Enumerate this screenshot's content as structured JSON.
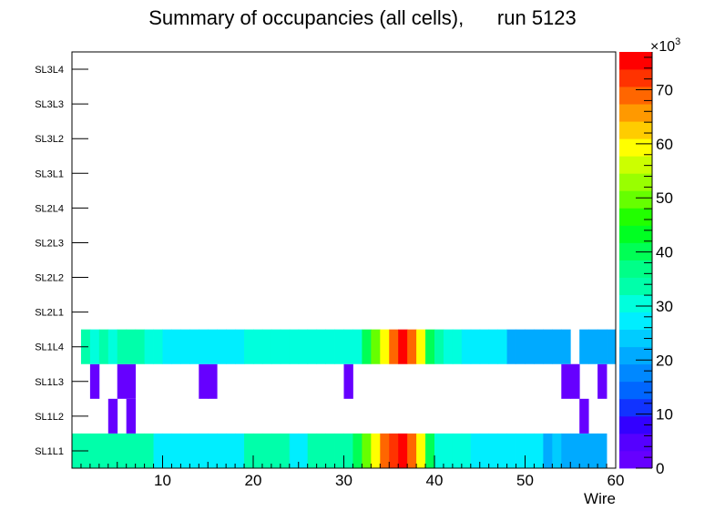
{
  "chart_data": {
    "type": "heatmap",
    "title": "Summary of occupancies (all cells),      run 5123",
    "xlabel": "Wire",
    "ylabel": "",
    "xlim": [
      0,
      60
    ],
    "x_ticks": [
      10,
      20,
      30,
      40,
      50,
      60
    ],
    "y_categories": [
      "SL1L1",
      "SL1L2",
      "SL1L3",
      "SL1L4",
      "SL2L1",
      "SL2L2",
      "SL2L3",
      "SL2L4",
      "SL3L1",
      "SL3L2",
      "SL3L3",
      "SL3L4"
    ],
    "colorbar": {
      "min": 0,
      "max": 77,
      "ticks": [
        0,
        10,
        20,
        30,
        40,
        50,
        60,
        70
      ],
      "exponent_label": "×10",
      "exponent_power": "3",
      "palette": [
        "#6600ff",
        "#5500ff",
        "#3300ff",
        "#1133ff",
        "#0066ff",
        "#0088ff",
        "#00aaff",
        "#00ccff",
        "#00eeff",
        "#00ffdd",
        "#00ffaa",
        "#00ff88",
        "#00ff55",
        "#00ff22",
        "#22ff00",
        "#66ff00",
        "#99ff00",
        "#ccff00",
        "#ffff00",
        "#ffcc00",
        "#ff9900",
        "#ff6600",
        "#ff3300",
        "#ff0000"
      ]
    },
    "rows": {
      "SL1L1": [
        33,
        33,
        33,
        33,
        33,
        33,
        33,
        33,
        33,
        28,
        28,
        26,
        28,
        28,
        28,
        26,
        28,
        28,
        28,
        33,
        33,
        33,
        33,
        33,
        28,
        28,
        33,
        33,
        33,
        33,
        33,
        40,
        50,
        60,
        70,
        72,
        76,
        70,
        60,
        40,
        30,
        30,
        30,
        30,
        28,
        28,
        28,
        28,
        28,
        28,
        28,
        28,
        20,
        25,
        20,
        20,
        20,
        20,
        20,
        0
      ],
      "SL1L2": [
        0,
        0,
        0,
        0,
        3,
        0,
        3,
        0,
        0,
        0,
        0,
        0,
        0,
        0,
        0,
        0,
        0,
        0,
        0,
        0,
        0,
        0,
        0,
        0,
        0,
        0,
        0,
        0,
        0,
        0,
        0,
        0,
        0,
        0,
        0,
        0,
        0,
        0,
        0,
        0,
        0,
        0,
        0,
        0,
        0,
        0,
        0,
        0,
        0,
        0,
        0,
        0,
        0,
        0,
        0,
        0,
        3,
        0,
        0,
        0
      ],
      "SL1L3": [
        0,
        0,
        3,
        0,
        0,
        3,
        3,
        0,
        0,
        0,
        0,
        0,
        0,
        0,
        3,
        3,
        0,
        0,
        0,
        0,
        0,
        0,
        0,
        0,
        0,
        0,
        0,
        0,
        0,
        0,
        3,
        0,
        0,
        0,
        0,
        0,
        0,
        0,
        0,
        0,
        0,
        0,
        0,
        0,
        0,
        0,
        0,
        0,
        0,
        0,
        0,
        0,
        0,
        0,
        3,
        3,
        0,
        0,
        3,
        0
      ],
      "SL1L4": [
        0,
        33,
        30,
        33,
        30,
        33,
        33,
        33,
        30,
        30,
        28,
        28,
        28,
        28,
        28,
        28,
        28,
        28,
        28,
        30,
        30,
        30,
        30,
        30,
        30,
        30,
        30,
        30,
        30,
        30,
        30,
        30,
        40,
        50,
        60,
        70,
        74,
        70,
        60,
        40,
        33,
        30,
        30,
        28,
        28,
        28,
        28,
        28,
        20,
        20,
        20,
        20,
        20,
        20,
        20,
        0,
        20,
        20,
        20,
        20
      ]
    }
  }
}
